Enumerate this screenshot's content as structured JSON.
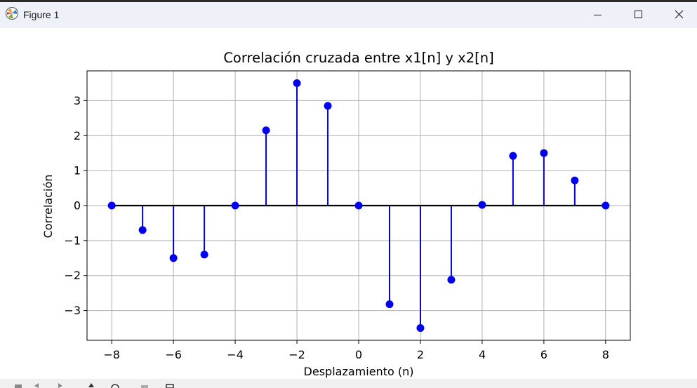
{
  "window": {
    "title": "Figure 1",
    "controls": {
      "minimize_icon": "minimize-icon",
      "maximize_icon": "maximize-icon",
      "close_icon": "close-icon"
    }
  },
  "toolbar": {
    "icons": [
      "home-icon",
      "back-arrow-icon",
      "forward-arrow-icon",
      "pan-icon",
      "zoom-icon",
      "configure-subplots-icon",
      "save-icon"
    ]
  },
  "chart_data": {
    "type": "stem",
    "title": "Correlación cruzada entre x1[n] y x2[n]",
    "xlabel": "Desplazamiento (n)",
    "ylabel": "Correlación",
    "x": [
      -8,
      -7,
      -6,
      -5,
      -4,
      -3,
      -2,
      -1,
      0,
      1,
      2,
      3,
      4,
      5,
      6,
      7,
      8
    ],
    "values": [
      0,
      -0.7,
      -1.5,
      -1.4,
      0,
      2.15,
      3.5,
      2.85,
      0,
      -2.82,
      -3.5,
      -2.12,
      0.02,
      1.42,
      1.5,
      0.72,
      0
    ],
    "xticks": [
      -8,
      -6,
      -4,
      -2,
      0,
      2,
      4,
      6,
      8
    ],
    "xtick_labels": [
      "−8",
      "−6",
      "−4",
      "−2",
      "0",
      "2",
      "4",
      "6",
      "8"
    ],
    "yticks": [
      -3,
      -2,
      -1,
      0,
      1,
      2,
      3
    ],
    "ytick_labels": [
      "−3",
      "−2",
      "−1",
      "0",
      "1",
      "2",
      "3"
    ],
    "xlim": [
      -8.8,
      8.8
    ],
    "ylim": [
      -3.85,
      3.85
    ],
    "grid": true,
    "colors": {
      "stem": "#0000cc",
      "marker": "#0000ee",
      "baseline": "#000000",
      "grid": "#b0b0b0"
    }
  }
}
